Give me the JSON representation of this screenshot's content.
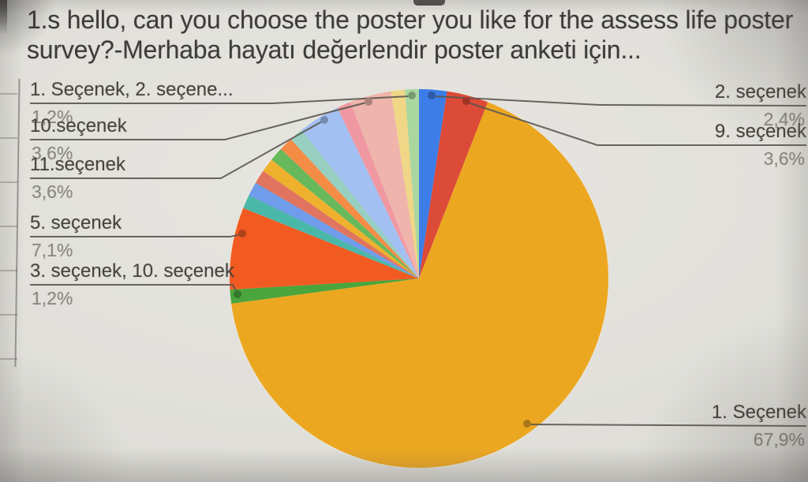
{
  "chart_data": {
    "type": "pie",
    "title": "1.s hello, can you choose the poster you like for the assess life poster survey?-Merhaba hayatı değerlendir poster anketi için...",
    "value_unit": "%",
    "legend_position": "none",
    "labels_position": "outside-callouts",
    "start_angle_deg": 0,
    "direction": "clockwise",
    "slices": [
      {
        "label": "2. seçenek",
        "value": 2.4,
        "color": "#3d7de8"
      },
      {
        "label": "9. seçenek",
        "value": 3.6,
        "color": "#dc4a38"
      },
      {
        "label": "1. Seçenek",
        "value": 67.9,
        "color": "#eca721"
      },
      {
        "label": "3. seçenek, 10. seçenek",
        "value": 1.2,
        "color": "#4aa53c"
      },
      {
        "label": "5. seçenek",
        "value": 7.1,
        "color": "#f15b22"
      },
      {
        "label": "",
        "value": 1.2,
        "color": "#4ab8a8"
      },
      {
        "label": "",
        "value": 1.2,
        "color": "#6f9ceb"
      },
      {
        "label": "",
        "value": 1.2,
        "color": "#e0745f"
      },
      {
        "label": "",
        "value": 1.2,
        "color": "#efb12d"
      },
      {
        "label": "",
        "value": 1.2,
        "color": "#67b95b"
      },
      {
        "label": "",
        "value": 1.2,
        "color": "#f58c45"
      },
      {
        "label": "",
        "value": 1.2,
        "color": "#97cfc0"
      },
      {
        "label": "11.seçenek",
        "value": 3.6,
        "color": "#a3c0f2"
      },
      {
        "label": "",
        "value": 1.2,
        "color": "#f098a2"
      },
      {
        "label": "10.seçenek",
        "value": 3.6,
        "color": "#efb4ab"
      },
      {
        "label": "",
        "value": 1.2,
        "color": "#f0d687"
      },
      {
        "label": "1. Seçenek, 2. seçene...",
        "value": 1.2,
        "color": "#a9d79f"
      }
    ],
    "callouts": [
      {
        "label": "1. Seçenek, 2. seçene...",
        "pct": "1,2%",
        "side": "left"
      },
      {
        "label": "10.seçenek",
        "pct": "3,6%",
        "side": "left"
      },
      {
        "label": "11.seçenek",
        "pct": "3,6%",
        "side": "left"
      },
      {
        "label": "5. seçenek",
        "pct": "7,1%",
        "side": "left"
      },
      {
        "label": "3. seçenek, 10. seçenek",
        "pct": "1,2%",
        "side": "left"
      },
      {
        "label": "2. seçenek",
        "pct": "2,4%",
        "side": "right"
      },
      {
        "label": "9. seçenek",
        "pct": "3,6%",
        "side": "right"
      },
      {
        "label": "1. Seçenek",
        "pct": "67,9%",
        "side": "right"
      }
    ],
    "colors": {
      "background": "#e0dfda",
      "title_text": "#3e3c39",
      "label_text": "#47443f",
      "percent_text": "#8a8781",
      "leader_line": "#5b5750"
    }
  }
}
